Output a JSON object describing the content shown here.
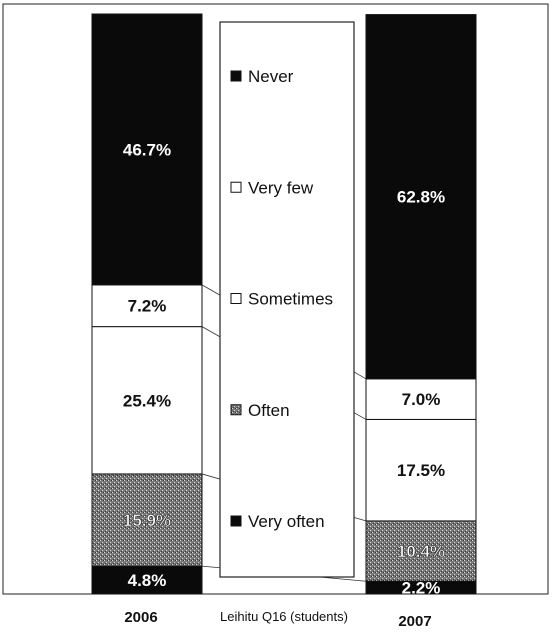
{
  "chart_data": {
    "type": "bar",
    "stacked": true,
    "percent_stacked": true,
    "title": "Leihitu Q16 (students)",
    "categories": [
      "2006",
      "2007"
    ],
    "series": [
      {
        "name": "Very often",
        "values": [
          4.8,
          2.2
        ],
        "labels": [
          "4.8%",
          "2.2%"
        ],
        "color": "#0a0a0a",
        "pattern": "solid"
      },
      {
        "name": "Often",
        "values": [
          15.9,
          10.4
        ],
        "labels": [
          "15.9%",
          "10.4%"
        ],
        "color": "#6e6e6e",
        "pattern": "stipple"
      },
      {
        "name": "Sometimes",
        "values": [
          25.4,
          17.5
        ],
        "labels": [
          "25.4%",
          "17.5%"
        ],
        "color": "#ffffff",
        "pattern": "solid"
      },
      {
        "name": "Very few",
        "values": [
          7.2,
          7.0
        ],
        "labels": [
          "7.2%",
          "7.0%"
        ],
        "color": "#ffffff",
        "pattern": "solid"
      },
      {
        "name": "Never",
        "values": [
          46.7,
          62.8
        ],
        "labels": [
          "46.7%",
          "62.8%"
        ],
        "color": "#0a0a0a",
        "pattern": "solid"
      }
    ],
    "legend": {
      "placement": "center",
      "order": [
        "Never",
        "Very few",
        "Sometimes",
        "Often",
        "Very often"
      ]
    },
    "ylim": [
      0,
      100
    ],
    "grid": false,
    "series_lines": true
  }
}
